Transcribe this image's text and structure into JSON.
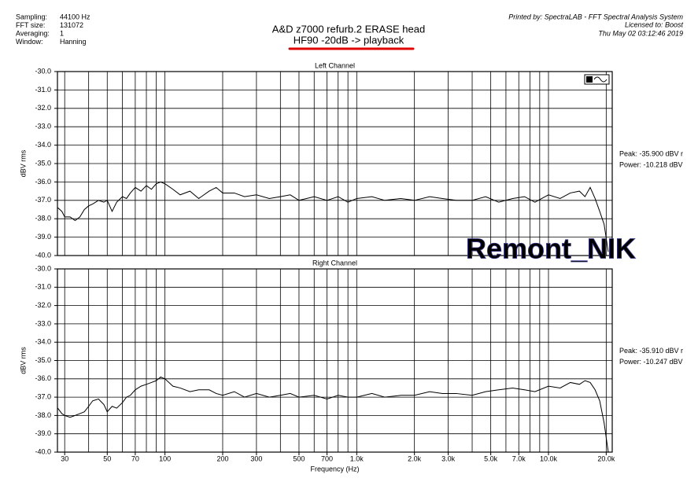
{
  "header": {
    "info_labels": [
      "Sampling:",
      "FFT size:",
      "Averaging:",
      "Window:"
    ],
    "info_values": [
      "44100 Hz",
      "131072",
      "1",
      "Hanning"
    ],
    "title": "A&D z7000 refurb.2 ERASE head",
    "subtitle": "HF90  -20dB  -> playback",
    "printed_by": "Printed by: SpectraLAB - FFT Spectral Analysis System",
    "licensed_to": "Licensed to: Boost",
    "date": "Thu May 02 03:12:46 2019",
    "watermark": "Remont_NIK"
  },
  "chart_data": [
    {
      "type": "line",
      "title": "Left Channel",
      "ylabel": "dBV rms",
      "xscale": "log",
      "color": "#000000",
      "annotations": [
        "Peak: -35.900 dBV r",
        "Power: -10.218 dBV"
      ],
      "xlim": [
        27.5,
        21500
      ],
      "ylim": [
        -40,
        -30
      ],
      "yticks": [
        {
          "value": -30,
          "label": "-30.0"
        },
        {
          "value": -31,
          "label": "-31.0"
        },
        {
          "value": -32,
          "label": "-32.0"
        },
        {
          "value": -33,
          "label": "-33.0"
        },
        {
          "value": -34,
          "label": "-34.0"
        },
        {
          "value": -35,
          "label": "-35.0"
        },
        {
          "value": -36,
          "label": "-36.0"
        },
        {
          "value": -37,
          "label": "-37.0"
        },
        {
          "value": -38,
          "label": "-38.0"
        },
        {
          "value": -39,
          "label": "-39.0"
        },
        {
          "value": -40,
          "label": "-40.0"
        }
      ],
      "xgrid": [
        30,
        40,
        50,
        60,
        70,
        80,
        90,
        100,
        200,
        300,
        400,
        500,
        600,
        700,
        800,
        900,
        1000,
        2000,
        3000,
        4000,
        5000,
        6000,
        7000,
        8000,
        9000,
        10000,
        20000
      ],
      "grid": true,
      "x": [
        27.6,
        29,
        30,
        32,
        34,
        36,
        38,
        40,
        42,
        45,
        48,
        50,
        53,
        56,
        60,
        63,
        66,
        70,
        75,
        80,
        85,
        90,
        95,
        100,
        110,
        120,
        135,
        150,
        170,
        185,
        200,
        230,
        260,
        300,
        350,
        400,
        450,
        500,
        600,
        700,
        800,
        900,
        1000,
        1200,
        1400,
        1700,
        2000,
        2400,
        2800,
        3300,
        4000,
        4700,
        5500,
        6500,
        7500,
        8500,
        10000,
        11500,
        13000,
        14500,
        15500,
        16500,
        17500,
        18500,
        19500,
        20500
      ],
      "values": [
        -37.4,
        -37.6,
        -37.9,
        -37.9,
        -38.1,
        -37.9,
        -37.5,
        -37.3,
        -37.2,
        -37.0,
        -37.1,
        -37.0,
        -37.6,
        -37.1,
        -36.8,
        -36.9,
        -36.6,
        -36.3,
        -36.5,
        -36.2,
        -36.4,
        -36.1,
        -36.0,
        -36.1,
        -36.4,
        -36.7,
        -36.5,
        -36.9,
        -36.5,
        -36.3,
        -36.6,
        -36.6,
        -36.8,
        -36.7,
        -36.9,
        -36.8,
        -36.7,
        -37.0,
        -36.8,
        -37.0,
        -36.8,
        -37.1,
        -36.9,
        -36.8,
        -37.0,
        -36.9,
        -37.0,
        -36.8,
        -36.9,
        -37.0,
        -37.0,
        -36.8,
        -37.1,
        -36.9,
        -36.8,
        -37.1,
        -36.7,
        -36.9,
        -36.6,
        -36.5,
        -36.8,
        -36.3,
        -36.9,
        -37.6,
        -38.3,
        -39.8
      ]
    },
    {
      "type": "line",
      "title": "Right Channel",
      "ylabel": "dBV rms",
      "xlabel": "Frequency (Hz)",
      "xscale": "log",
      "color": "#000000",
      "annotations": [
        "Peak: -35.910 dBV r",
        "Power: -10.247 dBV"
      ],
      "xlim": [
        27.5,
        21500
      ],
      "ylim": [
        -40,
        -30
      ],
      "yticks": [
        {
          "value": -30,
          "label": "-30.0"
        },
        {
          "value": -31,
          "label": "-31.0"
        },
        {
          "value": -32,
          "label": "-32.0"
        },
        {
          "value": -33,
          "label": "-33.0"
        },
        {
          "value": -34,
          "label": "-34.0"
        },
        {
          "value": -35,
          "label": "-35.0"
        },
        {
          "value": -36,
          "label": "-36.0"
        },
        {
          "value": -37,
          "label": "-37.0"
        },
        {
          "value": -38,
          "label": "-38.0"
        },
        {
          "value": -39,
          "label": "-39.0"
        },
        {
          "value": -40,
          "label": "-40.0"
        }
      ],
      "xgrid": [
        30,
        40,
        50,
        60,
        70,
        80,
        90,
        100,
        200,
        300,
        400,
        500,
        600,
        700,
        800,
        900,
        1000,
        2000,
        3000,
        4000,
        5000,
        6000,
        7000,
        8000,
        9000,
        10000,
        20000
      ],
      "xticks": [
        30,
        50,
        70,
        100,
        200,
        300,
        500,
        700,
        {
          "value": 1000,
          "label": "1.0k"
        },
        {
          "value": 2000,
          "label": "2.0k"
        },
        {
          "value": 3000,
          "label": "3.0k"
        },
        {
          "value": 5000,
          "label": "5.0k"
        },
        {
          "value": 7000,
          "label": "7.0k"
        },
        {
          "value": 10000,
          "label": "10.0k"
        },
        {
          "value": 20000,
          "label": "20.0k"
        }
      ],
      "grid": true,
      "x": [
        27.6,
        29,
        30,
        32,
        34,
        36,
        38,
        40,
        42,
        45,
        48,
        50,
        53,
        56,
        60,
        63,
        66,
        70,
        75,
        80,
        85,
        90,
        95,
        100,
        110,
        120,
        135,
        150,
        170,
        185,
        200,
        230,
        260,
        300,
        350,
        400,
        450,
        500,
        600,
        700,
        800,
        900,
        1000,
        1200,
        1400,
        1700,
        2000,
        2400,
        2800,
        3300,
        4000,
        4700,
        5500,
        6500,
        7500,
        8500,
        10000,
        11500,
        13000,
        14500,
        15500,
        16500,
        17500,
        18500,
        19500,
        20500
      ],
      "values": [
        -37.6,
        -37.9,
        -38.0,
        -38.1,
        -38.0,
        -37.9,
        -37.8,
        -37.5,
        -37.2,
        -37.1,
        -37.4,
        -37.8,
        -37.5,
        -37.6,
        -37.3,
        -37.0,
        -36.9,
        -36.6,
        -36.4,
        -36.3,
        -36.2,
        -36.1,
        -35.9,
        -36.0,
        -36.4,
        -36.5,
        -36.7,
        -36.6,
        -36.6,
        -36.8,
        -36.9,
        -36.7,
        -37.0,
        -36.8,
        -37.0,
        -36.9,
        -36.8,
        -37.0,
        -36.9,
        -37.1,
        -36.9,
        -37.0,
        -37.0,
        -36.8,
        -37.0,
        -36.9,
        -36.9,
        -36.7,
        -36.8,
        -36.8,
        -36.9,
        -36.7,
        -36.6,
        -36.5,
        -36.6,
        -36.7,
        -36.4,
        -36.5,
        -36.2,
        -36.3,
        -36.1,
        -36.2,
        -36.6,
        -37.2,
        -38.4,
        -40.0
      ]
    }
  ]
}
